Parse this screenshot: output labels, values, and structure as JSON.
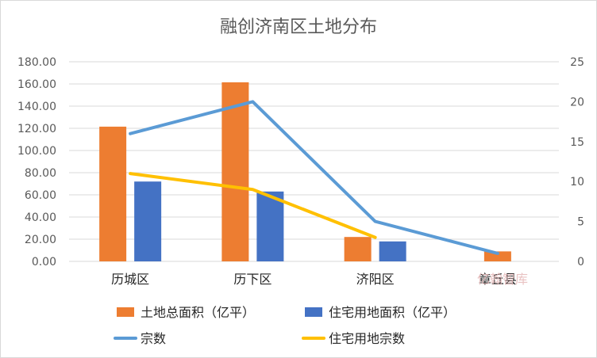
{
  "chart_data": {
    "type": "bar",
    "title": "融创济南区土地分布",
    "categories": [
      "历城区",
      "历下区",
      "济阳区",
      "章丘县"
    ],
    "series": [
      {
        "name": "土地总面积（亿平）",
        "chart": "bar",
        "axis": "left",
        "color": "#ED7D31",
        "values": [
          121.5,
          161.5,
          22.0,
          9.0
        ]
      },
      {
        "name": "住宅用地面积（亿平）",
        "chart": "bar",
        "axis": "left",
        "color": "#4472C4",
        "values": [
          72.0,
          63.0,
          18.0,
          null
        ]
      },
      {
        "name": "宗数",
        "chart": "line",
        "axis": "right",
        "color": "#5B9BD5",
        "values": [
          16,
          20,
          5,
          1
        ]
      },
      {
        "name": "住宅用地宗数",
        "chart": "line",
        "axis": "right",
        "color": "#FFC000",
        "values": [
          11,
          9,
          3,
          null
        ]
      }
    ],
    "left_axis": {
      "min": 0,
      "max": 180,
      "ticks": [
        "0.00",
        "20.00",
        "40.00",
        "60.00",
        "80.00",
        "100.00",
        "120.00",
        "140.00",
        "160.00",
        "180.00"
      ]
    },
    "right_axis": {
      "min": 0,
      "max": 25,
      "ticks": [
        "0",
        "5",
        "10",
        "15",
        "20",
        "25"
      ]
    },
    "grid": true,
    "legend_position": "bottom",
    "watermark": "亿翰智库"
  }
}
